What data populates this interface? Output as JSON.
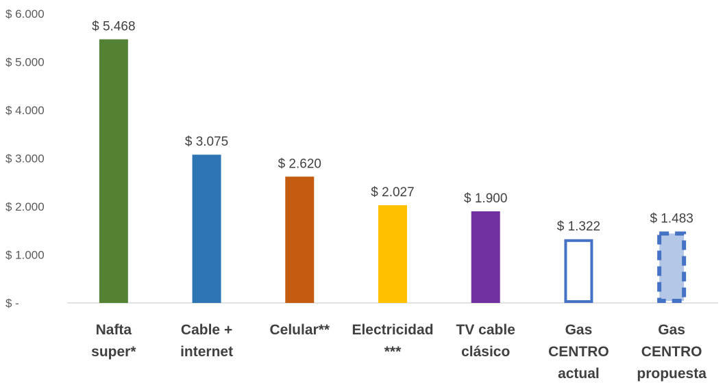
{
  "chart_data": {
    "type": "bar",
    "categories": [
      [
        "Nafta",
        "super*"
      ],
      [
        "Cable +",
        "internet"
      ],
      [
        "Celular**"
      ],
      [
        "Electricidad",
        "***"
      ],
      [
        "TV cable",
        "clásico"
      ],
      [
        "Gas",
        "CENTRO",
        "actual"
      ],
      [
        "Gas",
        "CENTRO",
        "propuesta"
      ]
    ],
    "values": [
      5468,
      3075,
      2620,
      2027,
      1900,
      1322,
      1483
    ],
    "value_labels": [
      "$ 5.468",
      "$ 3.075",
      "$ 2.620",
      "$ 2.027",
      "$ 1.900",
      "$ 1.322",
      "$ 1.483"
    ],
    "bar_styles": [
      {
        "fill": "#548235",
        "stroke": "none",
        "dash": false
      },
      {
        "fill": "#2e75b6",
        "stroke": "none",
        "dash": false
      },
      {
        "fill": "#c55a11",
        "stroke": "none",
        "dash": false
      },
      {
        "fill": "#ffc000",
        "stroke": "none",
        "dash": false
      },
      {
        "fill": "#7030a0",
        "stroke": "none",
        "dash": false
      },
      {
        "fill": "#ffffff",
        "stroke": "#4472c4",
        "dash": false
      },
      {
        "fill": "#b4c7e7",
        "stroke": "#4472c4",
        "dash": true
      }
    ],
    "ylim": [
      0,
      6000
    ],
    "yticks": [
      0,
      1000,
      2000,
      3000,
      4000,
      5000,
      6000
    ],
    "ytick_labels": [
      "$ -",
      "$ 1.000",
      "$ 2.000",
      "$ 3.000",
      "$ 4.000",
      "$ 5.000",
      "$ 6.000"
    ],
    "grid": false,
    "title": "",
    "xlabel": "",
    "ylabel": ""
  }
}
